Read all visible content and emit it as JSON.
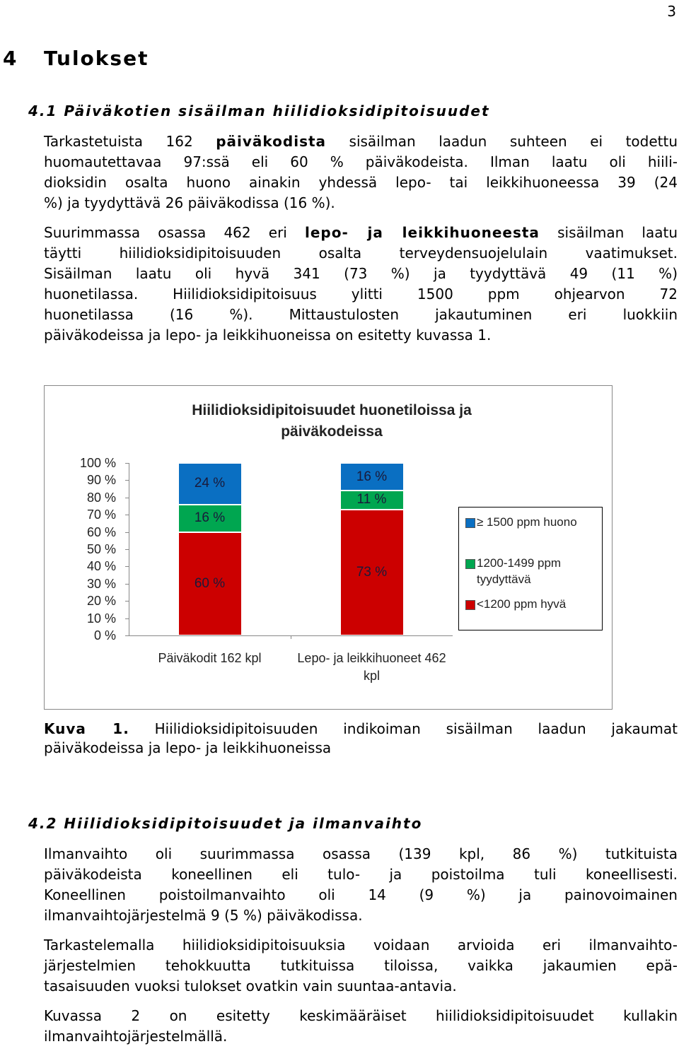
{
  "page_number": "3",
  "heading": {
    "number": "4",
    "title": "Tulokset"
  },
  "sections": [
    {
      "heading": "4.1 Päiväkotien sisäilman hiilidioksidipitoisuudet",
      "paragraphs": [
        {
          "lines": [
            [
              {
                "text": "Tarkastetuista 162 "
              },
              {
                "text": "päiväkodista",
                "bold": true
              },
              {
                "text": " sisäilman laadun suhteen ei todettu"
              }
            ],
            [
              {
                "text": "huomautettavaa 97:ssä eli 60 % päiväkodeista. Ilman laatu oli hiili-"
              }
            ],
            [
              {
                "text": "dioksidin osalta huono ainakin yhdessä lepo- tai leikkihuoneessa 39 (24"
              }
            ],
            [
              {
                "text": "%) ja tyydyttävä 26 päiväkodissa (16 %)."
              }
            ]
          ]
        },
        {
          "lines": [
            [
              {
                "text": "Suurimmassa osassa 462 eri "
              },
              {
                "text": "lepo- ja leikkihuoneesta",
                "bold": true
              },
              {
                "text": " sisäilman laatu"
              }
            ],
            [
              {
                "text": "täytti hiilidioksidipitoisuuden osalta terveydensuojelulain vaatimukset."
              }
            ],
            [
              {
                "text": "Sisäilman laatu oli hyvä 341 (73 %) ja tyydyttävä 49 (11 %)"
              }
            ],
            [
              {
                "text": "huonetilassa. Hiilidioksidipitoisuus ylitti 1500 ppm ohjearvon 72"
              }
            ],
            [
              {
                "text": "huonetilassa (16 %). Mittaustulosten jakautuminen eri luokkiin"
              }
            ],
            [
              {
                "text": "päiväkodeissa ja lepo- ja leikkihuoneissa on esitetty kuvassa 1."
              }
            ]
          ]
        }
      ]
    },
    {
      "heading": "4.2 Hiilidioksidipitoisuudet ja ilmanvaihto",
      "paragraphs": [
        {
          "lines": [
            [
              {
                "text": "Ilmanvaihto oli suurimmassa osassa (139 kpl, 86 %) tutkituista"
              }
            ],
            [
              {
                "text": "päiväkodeista koneellinen eli tulo- ja poistoilma tuli koneellisesti."
              }
            ],
            [
              {
                "text": "Koneellinen poistoilmanvaihto oli 14 (9 %) ja painovoimainen"
              }
            ],
            [
              {
                "text": "ilmanvaihtojärjestelmä 9 (5 %) päiväkodissa."
              }
            ]
          ]
        },
        {
          "lines": [
            [
              {
                "text": "Tarkastelemalla hiilidioksidipitoisuuksia voidaan arvioida eri ilmanvaihto-"
              }
            ],
            [
              {
                "text": "järjestelmien tehokkuutta tutkituissa tiloissa, vaikka jakaumien epä-"
              }
            ],
            [
              {
                "text": "tasaisuuden vuoksi tulokset ovatkin vain suuntaa-antavia."
              }
            ]
          ]
        },
        {
          "lines": [
            [
              {
                "text": "Kuvassa 2 on esitetty keskimääräiset hiilidioksidipitoisuudet kullakin"
              }
            ],
            [
              {
                "text": "ilmanvaihtojärjestelmällä."
              }
            ]
          ]
        }
      ]
    }
  ],
  "chart_data": {
    "type": "stacked_bar",
    "title": "Hiilidioksidipitoisuudet huonetiloissa ja päiväkodeissa",
    "categories": [
      "Päiväkodit 162 kpl",
      "Lepo- ja leikkihuoneet 462 kpl"
    ],
    "series": [
      {
        "name": "<1200 ppm hyvä",
        "color": "#cc0000",
        "values": [
          60,
          73
        ],
        "value_labels": [
          "60 %",
          "73 %"
        ]
      },
      {
        "name": "1200-1499 ppm tyydyttävä",
        "color": "#00a650",
        "values": [
          16,
          11
        ],
        "value_labels": [
          "16 %",
          "11 %"
        ]
      },
      {
        "name": "≥ 1500 ppm huono",
        "color": "#0a6fc2",
        "values": [
          24,
          16
        ],
        "value_labels": [
          "24 %",
          "16 %"
        ]
      }
    ],
    "ylim": [
      0,
      100
    ],
    "yticks": [
      {
        "value": 0,
        "label": "0 %"
      },
      {
        "value": 10,
        "label": "10 %"
      },
      {
        "value": 20,
        "label": "20 %"
      },
      {
        "value": 30,
        "label": "30 %"
      },
      {
        "value": 40,
        "label": "40 %"
      },
      {
        "value": 50,
        "label": "50 %"
      },
      {
        "value": 60,
        "label": "60 %"
      },
      {
        "value": 70,
        "label": "70 %"
      },
      {
        "value": 80,
        "label": "80 %"
      },
      {
        "value": 90,
        "label": "90 %"
      },
      {
        "value": 100,
        "label": "100 %"
      }
    ],
    "legend": "right"
  },
  "caption": {
    "lines": [
      [
        {
          "text": "Kuva 1.",
          "bold": true
        },
        {
          "text": " Hiilidioksidipitoisuuden indikoiman sisäilman laadun jakaumat"
        }
      ],
      [
        {
          "text": "päiväkodeissa ja lepo- ja leikkihuoneissa"
        }
      ]
    ]
  }
}
